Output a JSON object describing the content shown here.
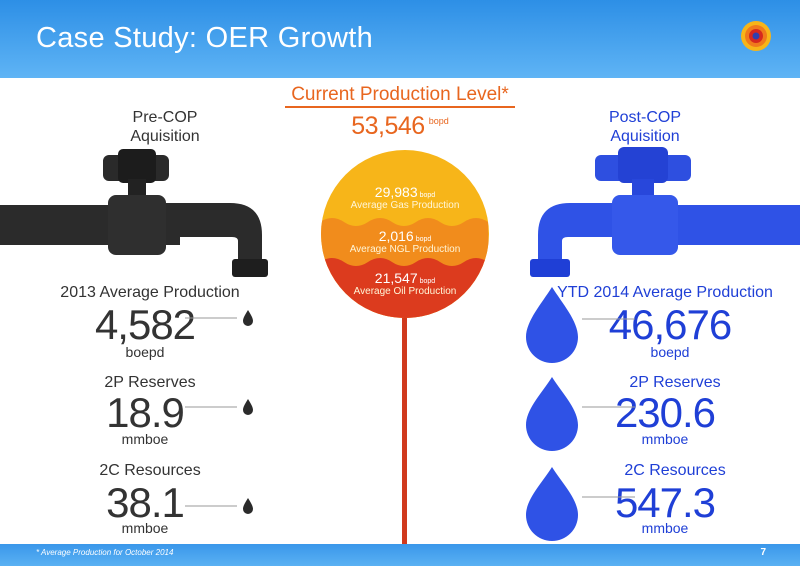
{
  "header": {
    "title": "Case Study: OER Growth"
  },
  "current_production": {
    "title": "Current Production Level*",
    "value": "53,546",
    "unit": "bopd"
  },
  "segments": [
    {
      "value": "29,983",
      "unit": "bopd",
      "label": "Average Gas Production",
      "color": "#f7b519"
    },
    {
      "value": "2,016",
      "unit": "bopd",
      "label": "Average NGL Production",
      "color": "#f18c1c"
    },
    {
      "value": "21,547",
      "unit": "bopd",
      "label": "Average Oil Production",
      "color": "#dc3b1e"
    }
  ],
  "left": {
    "title_line1": "Pre-COP",
    "title_line2": "Aquisition",
    "color": "#2b2b2b",
    "metrics": [
      {
        "label": "2013 Average Production",
        "value": "4,582",
        "unit": "boepd"
      },
      {
        "label": "2P Reserves",
        "value": "18.9",
        "unit": "mmboe"
      },
      {
        "label": "2C Resources",
        "value": "38.1",
        "unit": "mmboe"
      }
    ]
  },
  "right": {
    "title_line1": "Post-COP",
    "title_line2": "Aquisition",
    "color": "#1f3fd6",
    "metrics": [
      {
        "label": "YTD 2014 Average Production",
        "value": "46,676",
        "unit": "boepd"
      },
      {
        "label": "2P Reserves",
        "value": "230.6",
        "unit": "mmboe"
      },
      {
        "label": "2C Resources",
        "value": "547.3",
        "unit": "mmboe"
      }
    ]
  },
  "footer": {
    "footnote": "* Average Production for October 2014",
    "page_number": "7"
  }
}
